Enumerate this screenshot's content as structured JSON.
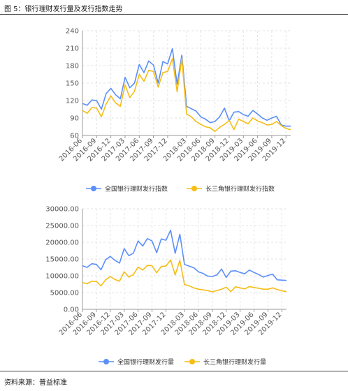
{
  "figure": {
    "title": "图 5：银行理财发行量及发行指数走势",
    "source": "资料来源：普益标准"
  },
  "chart_data": [
    {
      "type": "line",
      "x": [
        "2016-06",
        "2016-07",
        "2016-08",
        "2016-09",
        "2016-10",
        "2016-11",
        "2016-12",
        "2017-01",
        "2017-02",
        "2017-03",
        "2017-04",
        "2017-05",
        "2017-06",
        "2017-07",
        "2017-08",
        "2017-09",
        "2017-10",
        "2017-11",
        "2017-12",
        "2017-13",
        "2018-01",
        "2018-02",
        "2018-03",
        "2018-04",
        "2018-05",
        "2018-06",
        "2018-07",
        "2018-08",
        "2018-09",
        "2018-10",
        "2018-11",
        "2018-12",
        "2019-01",
        "2019-02",
        "2019-03",
        "2019-04",
        "2019-05",
        "2019-06",
        "2019-07",
        "2019-08",
        "2019-09",
        "2019-10",
        "2019-11",
        "2019-12",
        "2020-01"
      ],
      "xticks": [
        "2016-06",
        "2016-09",
        "2016-12",
        "2017-03",
        "2017-06",
        "2017-09",
        "2017-12",
        "2018-03",
        "2018-06",
        "2018-09",
        "2018-12",
        "2019-03",
        "2019-06",
        "2019-09",
        "2019-12"
      ],
      "series": [
        {
          "name": "全国银行理财发行指数",
          "color": "#5b8ff9",
          "values": [
            115,
            112,
            121,
            120,
            105,
            132,
            141,
            130,
            123,
            160,
            142,
            150,
            182,
            168,
            188,
            181,
            150,
            187,
            183,
            209,
            148,
            198,
            110,
            106,
            102,
            92,
            88,
            82,
            84,
            92,
            107,
            85,
            100,
            101,
            96,
            93,
            103,
            97,
            90,
            86,
            90,
            93,
            78,
            76,
            76
          ]
        },
        {
          "name": "长三角银行理财发行指数",
          "color": "#f6bd16",
          "values": [
            103,
            98,
            108,
            107,
            92,
            114,
            128,
            116,
            110,
            147,
            125,
            136,
            165,
            153,
            172,
            170,
            143,
            168,
            170,
            192,
            135,
            192,
            97,
            92,
            84,
            79,
            75,
            73,
            67,
            74,
            79,
            86,
            70,
            88,
            84,
            80,
            90,
            85,
            82,
            78,
            79,
            84,
            77,
            72,
            70
          ]
        }
      ],
      "ylim": [
        60,
        240
      ],
      "yticks": [
        60,
        90,
        120,
        150,
        180,
        210,
        240
      ],
      "legend": "bottom",
      "grid": true
    },
    {
      "type": "line",
      "x": [
        "2016-06",
        "2016-07",
        "2016-08",
        "2016-09",
        "2016-10",
        "2016-11",
        "2016-12",
        "2017-01",
        "2017-02",
        "2017-03",
        "2017-04",
        "2017-05",
        "2017-06",
        "2017-07",
        "2017-08",
        "2017-09",
        "2017-10",
        "2017-11",
        "2017-12",
        "2017-13",
        "2018-01",
        "2018-02",
        "2018-03",
        "2018-04",
        "2018-05",
        "2018-06",
        "2018-07",
        "2018-08",
        "2018-09",
        "2018-10",
        "2018-11",
        "2018-12",
        "2019-01",
        "2019-02",
        "2019-03",
        "2019-04",
        "2019-05",
        "2019-06",
        "2019-07",
        "2019-08",
        "2019-09",
        "2019-10",
        "2019-11",
        "2019-12",
        "2020-01"
      ],
      "xticks": [
        "2016-06",
        "2016-09",
        "2016-12",
        "2017-03",
        "2017-06",
        "2017-09",
        "2017-12",
        "2018-03",
        "2018-06",
        "2018-09",
        "2018-12",
        "2019-03",
        "2019-06",
        "2019-09",
        "2019-12"
      ],
      "series": [
        {
          "name": "全国银行理财发行量",
          "color": "#5b8ff9",
          "values": [
            13000,
            12500,
            13600,
            13400,
            11800,
            14800,
            15800,
            14600,
            13800,
            18100,
            16000,
            16800,
            20400,
            18900,
            21100,
            20400,
            16900,
            21000,
            20600,
            23600,
            16700,
            22400,
            13400,
            12900,
            12400,
            11200,
            10700,
            9900,
            9800,
            10300,
            12000,
            9500,
            11400,
            11500,
            11000,
            10600,
            11700,
            11000,
            10400,
            9600,
            10100,
            10500,
            8800,
            8700,
            8600
          ]
        },
        {
          "name": "长三角银行理财发行量",
          "color": "#f6bd16",
          "values": [
            8000,
            7600,
            8400,
            8300,
            7000,
            8800,
            9800,
            8900,
            8400,
            11200,
            9600,
            10400,
            12600,
            11700,
            13100,
            13000,
            10900,
            12800,
            12900,
            14700,
            10300,
            14600,
            7400,
            7000,
            6400,
            6000,
            5800,
            5600,
            5200,
            5600,
            6000,
            6600,
            5300,
            6700,
            6400,
            6100,
            6800,
            6500,
            6300,
            6000,
            6000,
            6400,
            5900,
            5500,
            5300
          ]
        }
      ],
      "ylim": [
        0,
        30000
      ],
      "yticks": [
        "0.00",
        "5000.00",
        "10000.00",
        "15000.00",
        "20000.00",
        "25000.00",
        "30000.00"
      ],
      "legend": "bottom",
      "grid": true
    }
  ]
}
